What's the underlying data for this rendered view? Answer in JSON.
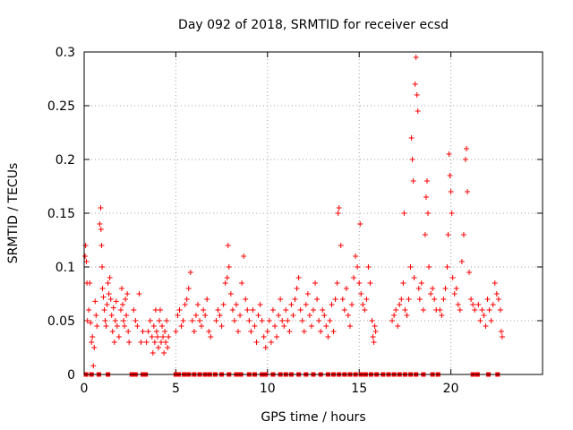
{
  "chart_data": {
    "type": "scatter",
    "title": "Day 092 of 2018, SRMTID for receiver ecsd",
    "xlabel": "GPS time / hours",
    "ylabel": "SRMTID / TECUs",
    "xlim": [
      0,
      25
    ],
    "ylim": [
      0,
      0.3
    ],
    "x_ticks": [
      0,
      5,
      10,
      15,
      20
    ],
    "x_tick_labels": [
      "0",
      "5",
      "10",
      "15",
      "20"
    ],
    "y_ticks": [
      0,
      0.05,
      0.1,
      0.15,
      0.2,
      0.25,
      0.3
    ],
    "y_tick_labels": [
      "0",
      "0.05",
      "0.1",
      "0.15",
      "0.2",
      "0.25",
      "0.3"
    ],
    "grid": true,
    "marker": "+",
    "series_color": "#ff0000",
    "series": [
      {
        "name": "SRMTID",
        "points": [
          [
            0.05,
            0.11
          ],
          [
            0.08,
            0.12
          ],
          [
            0.12,
            0.105
          ],
          [
            0.15,
            0.085
          ],
          [
            0.18,
            0.05
          ],
          [
            0.25,
            0.06
          ],
          [
            0.3,
            0.085
          ],
          [
            0.35,
            0.048
          ],
          [
            0.4,
            0.03
          ],
          [
            0.45,
            0.035
          ],
          [
            0.5,
            0.008
          ],
          [
            0.55,
            0.025
          ],
          [
            0.6,
            0.068
          ],
          [
            0.65,
            0.055
          ],
          [
            0.7,
            0.045
          ],
          [
            0.85,
            0.14
          ],
          [
            0.9,
            0.155
          ],
          [
            0.92,
            0.135
          ],
          [
            0.95,
            0.12
          ],
          [
            0.98,
            0.1
          ],
          [
            1.0,
            0.08
          ],
          [
            1.05,
            0.072
          ],
          [
            1.1,
            0.06
          ],
          [
            1.15,
            0.05
          ],
          [
            1.2,
            0.045
          ],
          [
            1.25,
            0.065
          ],
          [
            1.3,
            0.085
          ],
          [
            1.35,
            0.075
          ],
          [
            1.4,
            0.09
          ],
          [
            1.45,
            0.07
          ],
          [
            1.5,
            0.055
          ],
          [
            1.55,
            0.04
          ],
          [
            1.6,
            0.062
          ],
          [
            1.65,
            0.03
          ],
          [
            1.7,
            0.05
          ],
          [
            1.75,
            0.068
          ],
          [
            1.8,
            0.045
          ],
          [
            1.9,
            0.035
          ],
          [
            2.0,
            0.06
          ],
          [
            2.05,
            0.08
          ],
          [
            2.1,
            0.065
          ],
          [
            2.15,
            0.05
          ],
          [
            2.2,
            0.045
          ],
          [
            2.25,
            0.07
          ],
          [
            2.3,
            0.055
          ],
          [
            2.35,
            0.075
          ],
          [
            2.4,
            0.04
          ],
          [
            2.45,
            0.03
          ],
          [
            2.7,
            0.06
          ],
          [
            2.8,
            0.05
          ],
          [
            2.9,
            0.045
          ],
          [
            3.0,
            0.075
          ],
          [
            3.1,
            0.03
          ],
          [
            3.2,
            0.04
          ],
          [
            3.4,
            0.03
          ],
          [
            3.5,
            0.04
          ],
          [
            3.6,
            0.05
          ],
          [
            3.7,
            0.035
          ],
          [
            3.75,
            0.02
          ],
          [
            3.8,
            0.045
          ],
          [
            3.85,
            0.03
          ],
          [
            3.9,
            0.06
          ],
          [
            3.95,
            0.04
          ],
          [
            4.0,
            0.035
          ],
          [
            4.05,
            0.025
          ],
          [
            4.1,
            0.05
          ],
          [
            4.15,
            0.06
          ],
          [
            4.2,
            0.03
          ],
          [
            4.25,
            0.045
          ],
          [
            4.3,
            0.035
          ],
          [
            4.35,
            0.02
          ],
          [
            4.4,
            0.04
          ],
          [
            4.45,
            0.03
          ],
          [
            4.5,
            0.05
          ],
          [
            4.55,
            0.025
          ],
          [
            4.6,
            0.035
          ],
          [
            5.0,
            0.04
          ],
          [
            5.1,
            0.055
          ],
          [
            5.2,
            0.06
          ],
          [
            5.3,
            0.045
          ],
          [
            5.4,
            0.05
          ],
          [
            5.5,
            0.065
          ],
          [
            5.6,
            0.07
          ],
          [
            5.7,
            0.08
          ],
          [
            5.8,
            0.095
          ],
          [
            5.9,
            0.05
          ],
          [
            6.0,
            0.04
          ],
          [
            6.1,
            0.055
          ],
          [
            6.2,
            0.065
          ],
          [
            6.3,
            0.05
          ],
          [
            6.4,
            0.045
          ],
          [
            6.5,
            0.06
          ],
          [
            6.6,
            0.055
          ],
          [
            6.7,
            0.07
          ],
          [
            6.8,
            0.04
          ],
          [
            6.9,
            0.035
          ],
          [
            7.2,
            0.05
          ],
          [
            7.3,
            0.06
          ],
          [
            7.4,
            0.055
          ],
          [
            7.5,
            0.045
          ],
          [
            7.6,
            0.065
          ],
          [
            7.7,
            0.085
          ],
          [
            7.8,
            0.09
          ],
          [
            7.85,
            0.12
          ],
          [
            7.9,
            0.1
          ],
          [
            8.0,
            0.075
          ],
          [
            8.1,
            0.06
          ],
          [
            8.2,
            0.05
          ],
          [
            8.3,
            0.065
          ],
          [
            8.4,
            0.04
          ],
          [
            8.5,
            0.055
          ],
          [
            8.6,
            0.085
          ],
          [
            8.7,
            0.11
          ],
          [
            8.8,
            0.07
          ],
          [
            8.9,
            0.06
          ],
          [
            9.0,
            0.05
          ],
          [
            9.1,
            0.04
          ],
          [
            9.2,
            0.06
          ],
          [
            9.3,
            0.045
          ],
          [
            9.4,
            0.03
          ],
          [
            9.5,
            0.055
          ],
          [
            9.6,
            0.065
          ],
          [
            9.7,
            0.05
          ],
          [
            9.8,
            0.035
          ],
          [
            9.9,
            0.025
          ],
          [
            10.0,
            0.04
          ],
          [
            10.1,
            0.05
          ],
          [
            10.2,
            0.03
          ],
          [
            10.3,
            0.06
          ],
          [
            10.4,
            0.045
          ],
          [
            10.5,
            0.035
          ],
          [
            10.6,
            0.055
          ],
          [
            10.7,
            0.07
          ],
          [
            10.8,
            0.05
          ],
          [
            10.9,
            0.045
          ],
          [
            11.0,
            0.06
          ],
          [
            11.1,
            0.05
          ],
          [
            11.2,
            0.04
          ],
          [
            11.3,
            0.065
          ],
          [
            11.4,
            0.055
          ],
          [
            11.5,
            0.07
          ],
          [
            11.6,
            0.08
          ],
          [
            11.7,
            0.09
          ],
          [
            11.8,
            0.06
          ],
          [
            11.9,
            0.05
          ],
          [
            12.0,
            0.04
          ],
          [
            12.1,
            0.065
          ],
          [
            12.2,
            0.075
          ],
          [
            12.3,
            0.055
          ],
          [
            12.4,
            0.045
          ],
          [
            12.5,
            0.06
          ],
          [
            12.6,
            0.085
          ],
          [
            12.7,
            0.07
          ],
          [
            12.8,
            0.05
          ],
          [
            12.9,
            0.04
          ],
          [
            13.0,
            0.06
          ],
          [
            13.1,
            0.055
          ],
          [
            13.2,
            0.045
          ],
          [
            13.3,
            0.035
          ],
          [
            13.4,
            0.05
          ],
          [
            13.5,
            0.065
          ],
          [
            13.6,
            0.04
          ],
          [
            13.7,
            0.07
          ],
          [
            13.8,
            0.085
          ],
          [
            13.85,
            0.15
          ],
          [
            13.9,
            0.155
          ],
          [
            14.0,
            0.12
          ],
          [
            14.1,
            0.07
          ],
          [
            14.2,
            0.06
          ],
          [
            14.3,
            0.08
          ],
          [
            14.4,
            0.055
          ],
          [
            14.5,
            0.045
          ],
          [
            14.6,
            0.065
          ],
          [
            14.7,
            0.09
          ],
          [
            14.8,
            0.11
          ],
          [
            14.9,
            0.1
          ],
          [
            15.0,
            0.085
          ],
          [
            15.05,
            0.14
          ],
          [
            15.1,
            0.075
          ],
          [
            15.2,
            0.065
          ],
          [
            15.3,
            0.06
          ],
          [
            15.4,
            0.07
          ],
          [
            15.5,
            0.1
          ],
          [
            15.6,
            0.085
          ],
          [
            15.7,
            0.05
          ],
          [
            15.75,
            0.035
          ],
          [
            15.8,
            0.03
          ],
          [
            15.85,
            0.045
          ],
          [
            15.9,
            0.04
          ],
          [
            16.8,
            0.05
          ],
          [
            16.9,
            0.055
          ],
          [
            17.0,
            0.06
          ],
          [
            17.1,
            0.045
          ],
          [
            17.2,
            0.065
          ],
          [
            17.3,
            0.07
          ],
          [
            17.4,
            0.085
          ],
          [
            17.45,
            0.15
          ],
          [
            17.5,
            0.06
          ],
          [
            17.6,
            0.055
          ],
          [
            17.7,
            0.07
          ],
          [
            17.8,
            0.1
          ],
          [
            17.85,
            0.22
          ],
          [
            17.9,
            0.2
          ],
          [
            17.95,
            0.18
          ],
          [
            18.0,
            0.09
          ],
          [
            18.05,
            0.27
          ],
          [
            18.1,
            0.295
          ],
          [
            18.15,
            0.26
          ],
          [
            18.2,
            0.245
          ],
          [
            18.25,
            0.08
          ],
          [
            18.3,
            0.07
          ],
          [
            18.4,
            0.085
          ],
          [
            18.5,
            0.06
          ],
          [
            18.6,
            0.13
          ],
          [
            18.65,
            0.165
          ],
          [
            18.7,
            0.18
          ],
          [
            18.75,
            0.15
          ],
          [
            18.8,
            0.1
          ],
          [
            18.9,
            0.075
          ],
          [
            19.0,
            0.08
          ],
          [
            19.1,
            0.07
          ],
          [
            19.2,
            0.06
          ],
          [
            19.4,
            0.06
          ],
          [
            19.5,
            0.055
          ],
          [
            19.6,
            0.07
          ],
          [
            19.7,
            0.08
          ],
          [
            19.8,
            0.1
          ],
          [
            19.85,
            0.13
          ],
          [
            19.9,
            0.205
          ],
          [
            19.95,
            0.185
          ],
          [
            20.0,
            0.17
          ],
          [
            20.05,
            0.15
          ],
          [
            20.1,
            0.09
          ],
          [
            20.2,
            0.075
          ],
          [
            20.3,
            0.08
          ],
          [
            20.4,
            0.065
          ],
          [
            20.5,
            0.06
          ],
          [
            20.6,
            0.105
          ],
          [
            20.7,
            0.13
          ],
          [
            20.8,
            0.2
          ],
          [
            20.85,
            0.21
          ],
          [
            20.9,
            0.17
          ],
          [
            21.0,
            0.095
          ],
          [
            21.1,
            0.07
          ],
          [
            21.2,
            0.065
          ],
          [
            21.3,
            0.06
          ],
          [
            21.5,
            0.065
          ],
          [
            21.6,
            0.05
          ],
          [
            21.7,
            0.06
          ],
          [
            21.8,
            0.055
          ],
          [
            21.9,
            0.045
          ],
          [
            22.0,
            0.07
          ],
          [
            22.1,
            0.06
          ],
          [
            22.2,
            0.05
          ],
          [
            22.3,
            0.065
          ],
          [
            22.4,
            0.085
          ],
          [
            22.5,
            0.075
          ],
          [
            22.6,
            0.07
          ],
          [
            22.7,
            0.06
          ],
          [
            22.75,
            0.04
          ],
          [
            22.8,
            0.035
          ]
        ]
      }
    ],
    "zero_markers_x": [
      0.1,
      0.4,
      0.8,
      1.3,
      2.6,
      2.8,
      3.2,
      3.35,
      5.0,
      5.15,
      5.45,
      5.7,
      6.0,
      6.3,
      6.6,
      6.85,
      7.15,
      7.5,
      7.9,
      8.3,
      8.55,
      9.0,
      9.3,
      9.7,
      9.9,
      10.3,
      10.7,
      11.0,
      11.3,
      11.7,
      12.1,
      12.5,
      12.9,
      13.3,
      13.6,
      13.9,
      14.2,
      14.5,
      14.8,
      15.1,
      15.35,
      15.65,
      15.95,
      16.3,
      16.6,
      16.9,
      17.2,
      17.5,
      17.8,
      18.1,
      18.5,
      19.0,
      19.3,
      21.2,
      21.45,
      22.05,
      22.55
    ]
  }
}
